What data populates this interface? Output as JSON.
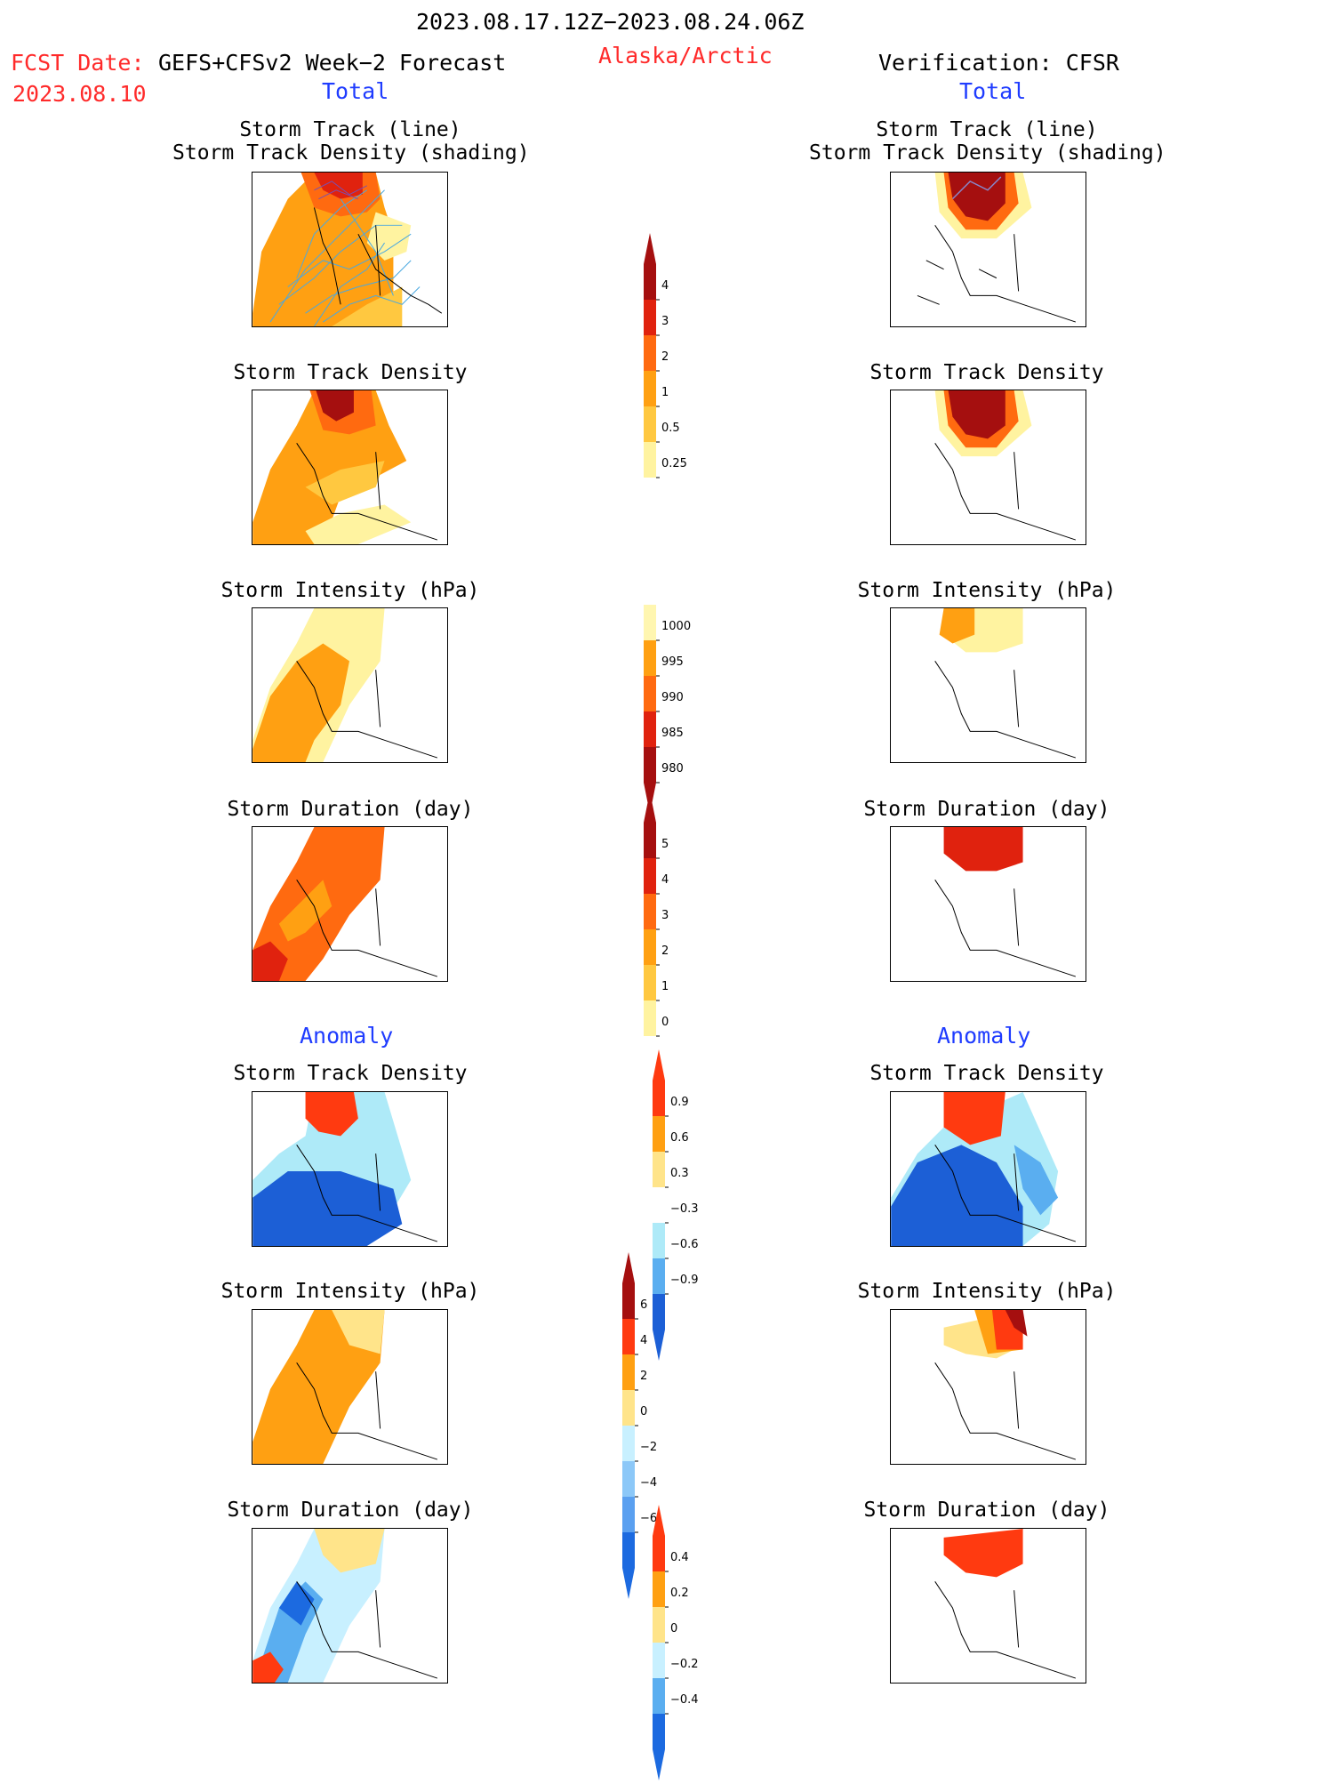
{
  "header": {
    "period": "2023.08.17.12Z−2023.08.24.06Z",
    "fcst_label": "FCST Date:",
    "fcst_source": "GEFS+CFSv2 Week−2 Forecast",
    "fcst_date": "2023.08.10",
    "region": "Alaska/Arctic",
    "verification": "Verification: CFSR"
  },
  "sections": {
    "total": "Total",
    "anomaly": "Anomaly"
  },
  "panel_titles": {
    "track_line": "Storm Track (line)",
    "track_shading": "Storm Track Density (shading)",
    "density": "Storm Track Density",
    "intensity": "Storm Intensity (hPa)",
    "duration": "Storm Duration (day)"
  },
  "colorbars": {
    "density_total": {
      "labels": [
        "4",
        "3",
        "2",
        "1",
        "0.5",
        "0.25"
      ],
      "colors": [
        "#a50f0f",
        "#e0220e",
        "#ff6a10",
        "#ffa012",
        "#ffc840",
        "#fff3a0"
      ]
    },
    "intensity_total": {
      "labels": [
        "1000",
        "995",
        "990",
        "985",
        "980"
      ],
      "colors": [
        "#fff6b0",
        "#ffa012",
        "#ff6a10",
        "#e0220e",
        "#a50f0f"
      ]
    },
    "duration_total": {
      "labels": [
        "5",
        "4",
        "3",
        "2",
        "1",
        "0"
      ],
      "colors": [
        "#a50f0f",
        "#e0220e",
        "#ff6a10",
        "#ffa012",
        "#ffc840",
        "#fff3a0"
      ]
    },
    "density_anom": {
      "labels": [
        "0.9",
        "0.6",
        "0.3",
        "−0.3",
        "−0.6",
        "−0.9"
      ],
      "colors": [
        "#ff3a10",
        "#ffa012",
        "#ffe48a",
        "#ffffff",
        "#aeeaf8",
        "#5aaef0",
        "#1c5fd6"
      ]
    },
    "intensity_anom": {
      "labels": [
        "6",
        "4",
        "2",
        "0",
        "−2",
        "−4",
        "−6"
      ],
      "colors": [
        "#a50f0f",
        "#ff3a10",
        "#ffa012",
        "#ffe48a",
        "#c8f0ff",
        "#8cc8f8",
        "#5aa0f0",
        "#1c6ae0"
      ]
    },
    "duration_anom": {
      "labels": [
        "0.4",
        "0.2",
        "0",
        "−0.2",
        "−0.4"
      ],
      "colors": [
        "#ff3a10",
        "#ffa012",
        "#ffe48a",
        "#c8f0ff",
        "#5aaef0",
        "#1c6ae0"
      ]
    }
  }
}
